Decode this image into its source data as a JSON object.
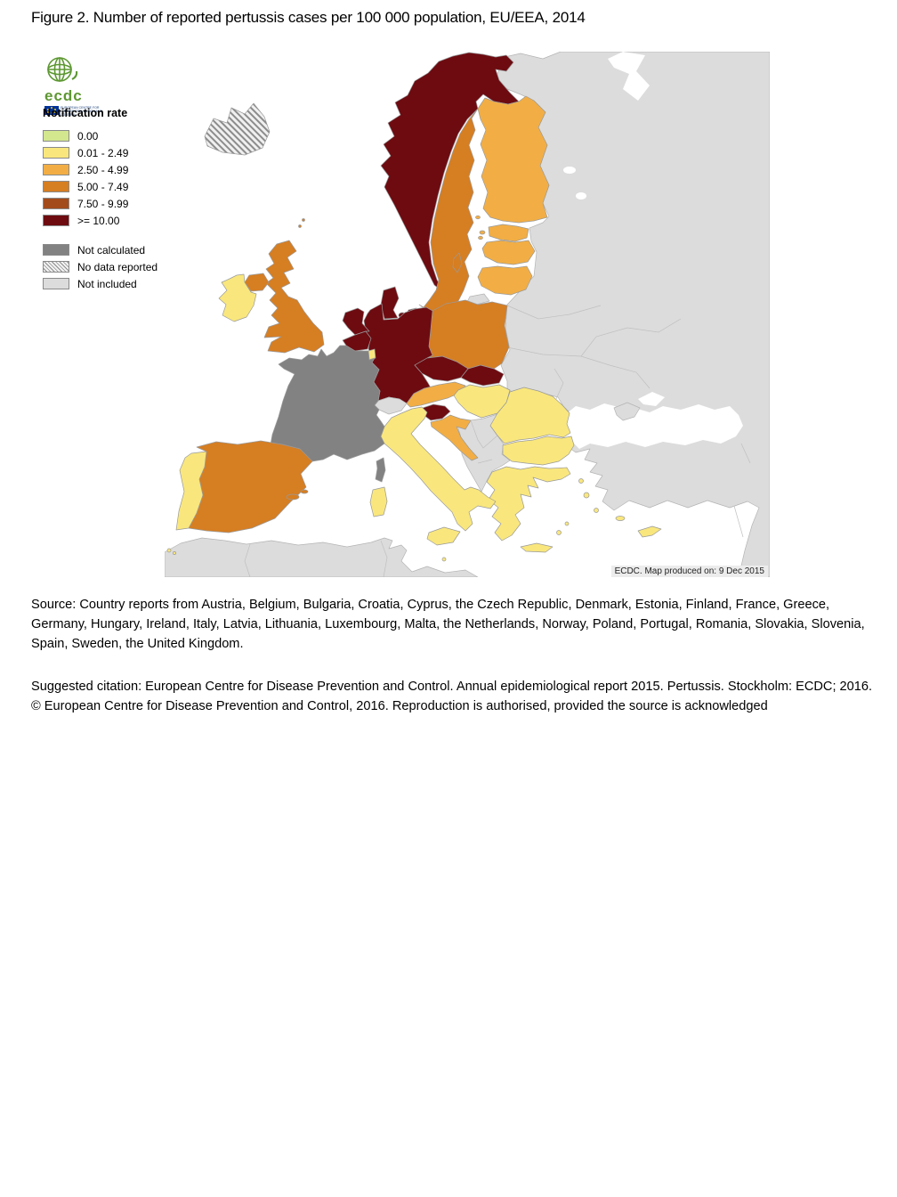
{
  "figure": {
    "title": "Figure 2. Number of reported pertussis cases per 100 000 population, EU/EEA, 2014"
  },
  "logo": {
    "word": "ecdc",
    "sub_line1": "EUROPEAN CENTRE FOR",
    "sub_line2": "DISEASE PREVENTION AND CONTROL"
  },
  "legend": {
    "title": "Notification rate",
    "classes": [
      {
        "id": "r0",
        "label": "0.00",
        "color": "#d3e78f"
      },
      {
        "id": "r1",
        "label": "0.01 - 2.49",
        "color": "#f9e77d"
      },
      {
        "id": "r2",
        "label": "2.50 - 4.99",
        "color": "#f2ae44"
      },
      {
        "id": "r3",
        "label": "5.00 - 7.49",
        "color": "#d67e22"
      },
      {
        "id": "r4",
        "label": "7.50 - 9.99",
        "color": "#a34b1b"
      },
      {
        "id": "r5",
        "label": ">= 10.00",
        "color": "#6d0b11"
      }
    ],
    "statuses": [
      {
        "id": "not_calculated",
        "label": "Not calculated",
        "color": "#828282"
      },
      {
        "id": "no_data",
        "label": "No data reported",
        "color": "hatch"
      },
      {
        "id": "not_included",
        "label": "Not included",
        "color": "#dcdcdc"
      }
    ]
  },
  "map": {
    "attribution": "ECDC. Map produced on: 9 Dec 2015",
    "sea_color": "#ffffff",
    "countries": [
      {
        "name": "Iceland",
        "class": "no_data"
      },
      {
        "name": "Norway",
        "class": "r5"
      },
      {
        "name": "Sweden",
        "class": "r3"
      },
      {
        "name": "Finland",
        "class": "r2"
      },
      {
        "name": "Denmark",
        "class": "r5"
      },
      {
        "name": "Estonia",
        "class": "r2"
      },
      {
        "name": "Latvia",
        "class": "r2"
      },
      {
        "name": "Lithuania",
        "class": "r2"
      },
      {
        "name": "Poland",
        "class": "r3"
      },
      {
        "name": "Germany",
        "class": "r5"
      },
      {
        "name": "Netherlands",
        "class": "r5"
      },
      {
        "name": "Belgium",
        "class": "r5"
      },
      {
        "name": "Luxembourg",
        "class": "r1"
      },
      {
        "name": "United Kingdom",
        "class": "r3"
      },
      {
        "name": "Ireland",
        "class": "r1"
      },
      {
        "name": "France",
        "class": "not_calculated"
      },
      {
        "name": "Spain",
        "class": "r3"
      },
      {
        "name": "Portugal",
        "class": "r1"
      },
      {
        "name": "Italy",
        "class": "r1"
      },
      {
        "name": "Switzerland",
        "class": "not_included"
      },
      {
        "name": "Austria",
        "class": "r2"
      },
      {
        "name": "Czech Republic",
        "class": "r5"
      },
      {
        "name": "Slovakia",
        "class": "r5"
      },
      {
        "name": "Hungary",
        "class": "r1"
      },
      {
        "name": "Slovenia",
        "class": "r5"
      },
      {
        "name": "Croatia",
        "class": "r2"
      },
      {
        "name": "Romania",
        "class": "r1"
      },
      {
        "name": "Bulgaria",
        "class": "r1"
      },
      {
        "name": "Greece",
        "class": "r1"
      },
      {
        "name": "Cyprus",
        "class": "r1"
      },
      {
        "name": "Malta",
        "class": "r1"
      },
      {
        "name": "non-EU-EEA",
        "class": "not_included"
      }
    ]
  },
  "footer": {
    "source": "Source: Country reports from Austria, Belgium, Bulgaria, Croatia, Cyprus, the Czech Republic, Denmark, Estonia, Finland, France, Greece, Germany, Hungary, Ireland, Italy, Latvia, Lithuania, Luxembourg, Malta, the Netherlands, Norway, Poland, Portugal, Romania, Slovakia, Slovenia, Spain, Sweden, the United Kingdom.",
    "citation": "Suggested citation: European Centre for Disease Prevention and Control. Annual epidemiological report 2015. Pertussis. Stockholm: ECDC; 2016.",
    "copyright": "© European Centre for Disease Prevention and Control, 2016. Reproduction is authorised, provided the source is acknowledged"
  }
}
